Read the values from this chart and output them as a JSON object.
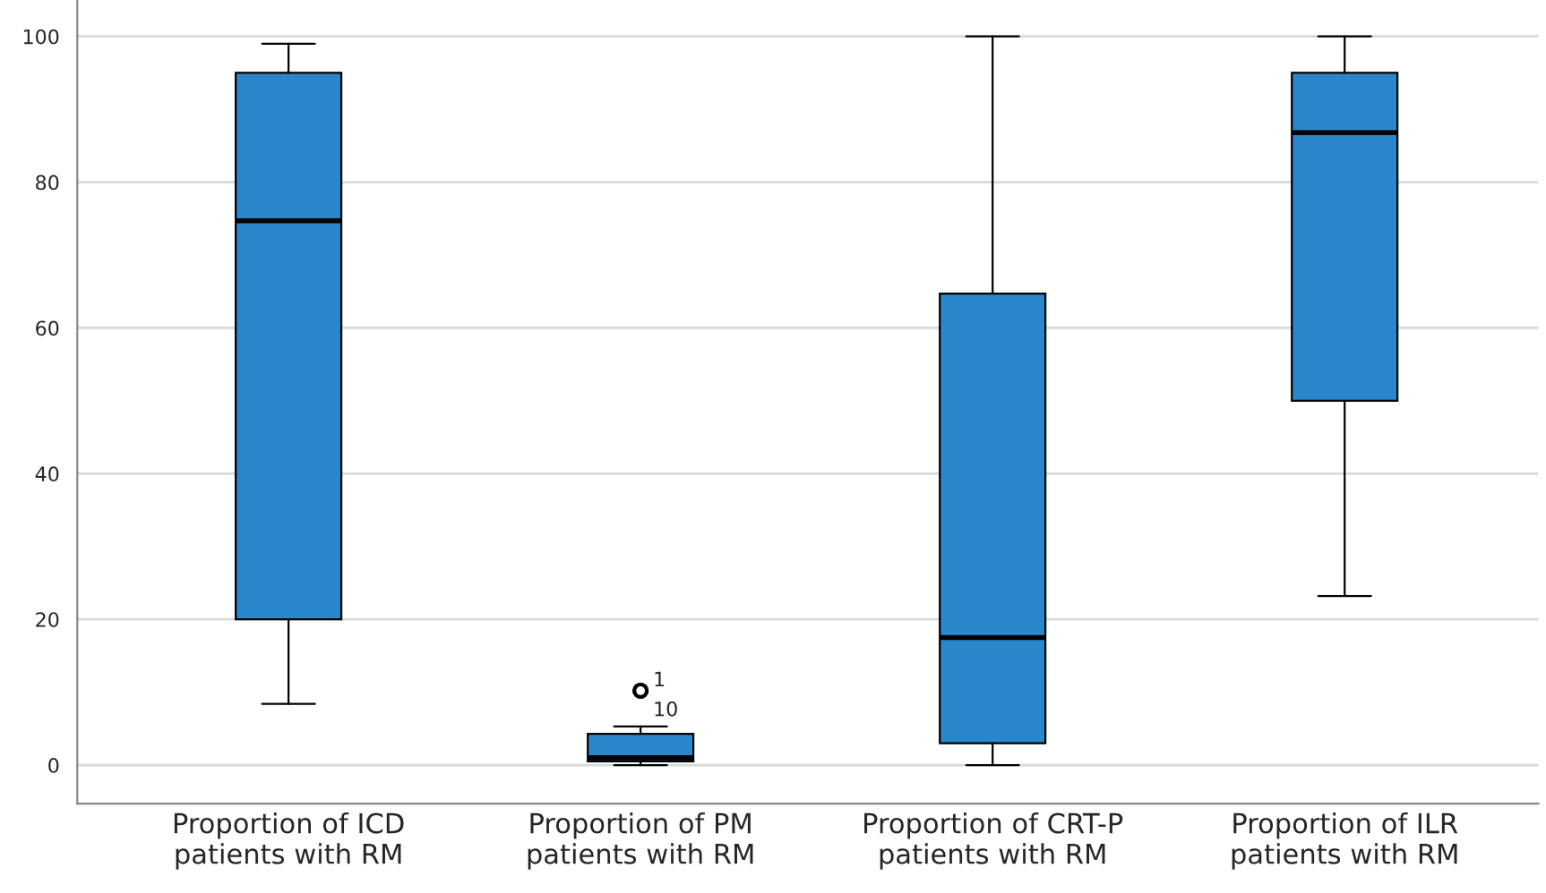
{
  "chart_data": {
    "type": "box",
    "categories": [
      "Proportion of ICD\npatients with RM",
      "Proportion of PM\npatients with RM",
      "Proportion of CRT-P\npatients with RM",
      "Proportion of ILR\npatients with RM"
    ],
    "boxes": [
      {
        "low": 8.4,
        "q1": 20,
        "median": 74.7,
        "q3": 95,
        "high": 99
      },
      {
        "low": 0,
        "q1": 0.5,
        "median": 1,
        "q3": 4.3,
        "high": 5.3,
        "outliers": [
          10.2,
          10.2
        ]
      },
      {
        "low": 0,
        "q1": 3,
        "median": 17.5,
        "q3": 64.7,
        "high": 100
      },
      {
        "low": 23.2,
        "q1": 50,
        "median": 86.8,
        "q3": 95,
        "high": 100
      }
    ],
    "color": "#2b87cc",
    "ylim": [
      -5.3,
      105
    ],
    "yticks": [
      0,
      20,
      40,
      60,
      80,
      100
    ],
    "grid": "y",
    "annotations": [
      "1",
      "10"
    ]
  }
}
